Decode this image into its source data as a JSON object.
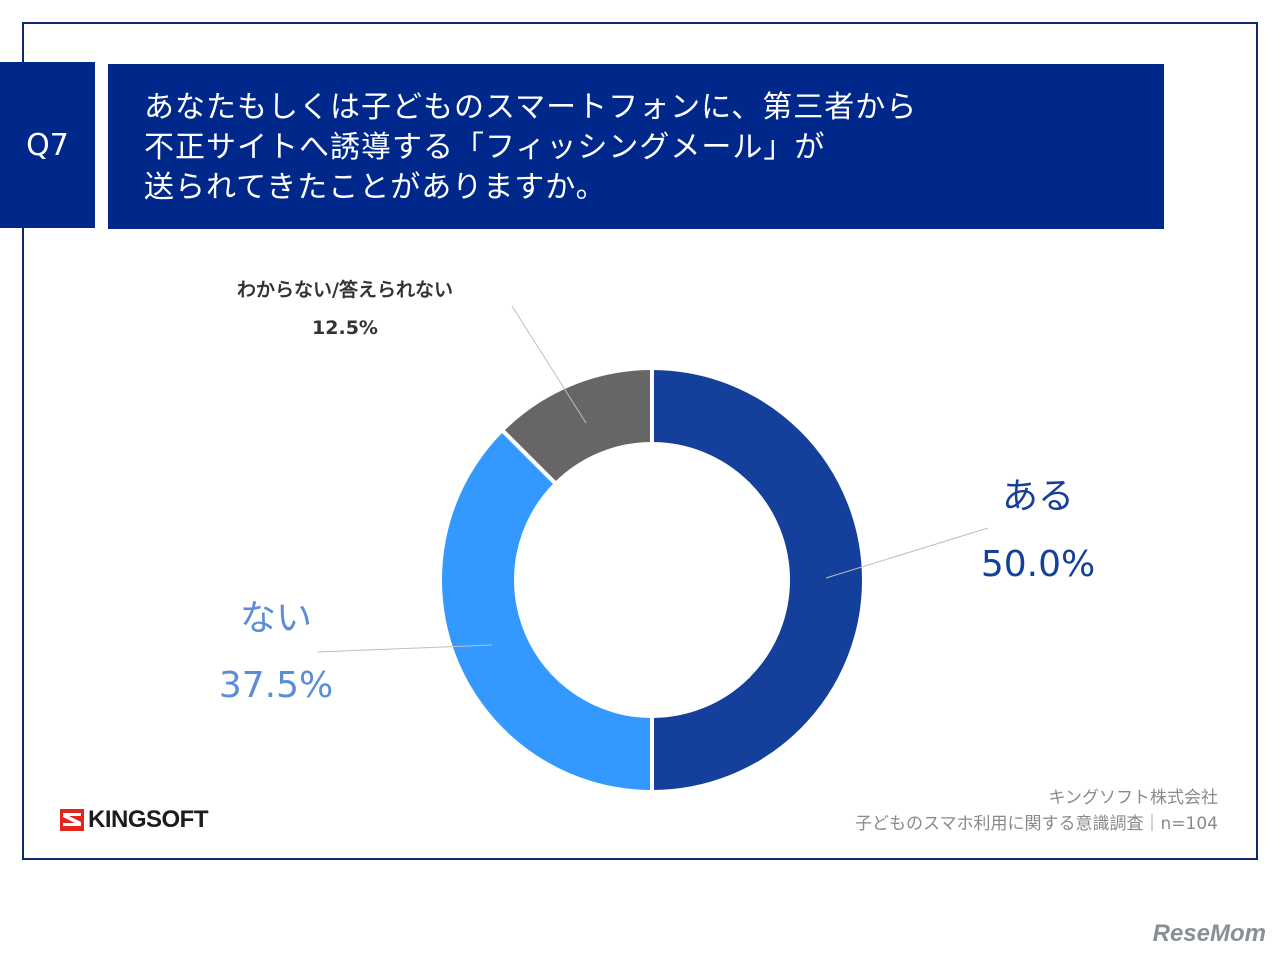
{
  "question": {
    "badge": "Q7",
    "lines": [
      "あなたもしくは子どものスマートフォンに、第三者から",
      "不正サイトへ誘導する「フィッシングメール」が",
      "送られてきたことがありますか。"
    ]
  },
  "chart_data": {
    "type": "pie",
    "variant": "donut",
    "slices": [
      {
        "label": "ある",
        "value": 50.0,
        "display": "50.0%",
        "color": "#143f9b",
        "label_color": "#143f9b"
      },
      {
        "label": "ない",
        "value": 37.5,
        "display": "37.5%",
        "color": "#3399ff",
        "label_color": "#5b8ed6"
      },
      {
        "label": "わからない/答えられない",
        "value": 12.5,
        "display": "12.5%",
        "color": "#666666",
        "label_color": "#333333"
      }
    ]
  },
  "footer": {
    "company": "キングソフト株式会社",
    "survey": "子どものスマホ利用に関する意識調査｜n=104",
    "logo": "KINGSOFT",
    "logo_icon": "kingsoft-logo-icon"
  },
  "watermark": "ReseMom"
}
